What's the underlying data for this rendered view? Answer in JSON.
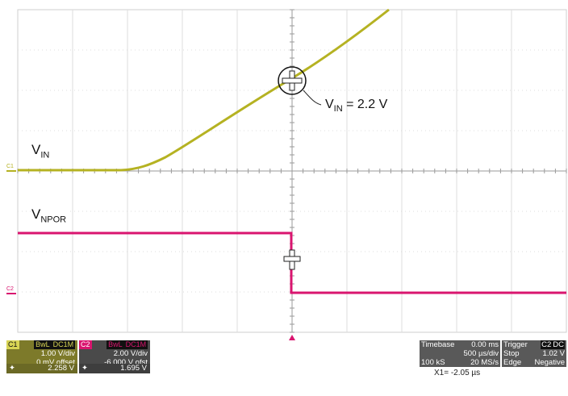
{
  "traces": {
    "vin_label": "V",
    "vin_sub": "IN",
    "vnpor_label": "V",
    "vnpor_sub": "NPOR",
    "annotation_v": "V",
    "annotation_sub": "IN",
    "annotation_val": " = 2.2 V",
    "c1_marker": "C1",
    "c2_marker": "C2"
  },
  "ch1_panel": {
    "name": "C1",
    "bwl": "BwL",
    "coupling": "DC1M",
    "scale": "1.00 V/div",
    "offset": "0 mV offset",
    "cursor_value": "2.258 V"
  },
  "ch2_panel": {
    "name": "C2",
    "bwl": "BwL",
    "coupling": "DC1M",
    "scale": "2.00 V/div",
    "offset": "-6.000 V ofst",
    "cursor_value": "1.695 V"
  },
  "timebase_panel": {
    "title": "Timebase",
    "delay": "0.00 ms",
    "scale": "500 µs/div",
    "samples": "100 kS",
    "rate": "20 MS/s",
    "cursor": "X1= -2.05 µs"
  },
  "trigger_panel": {
    "title": "Trigger",
    "source": "C2",
    "coupling": "DC",
    "mode": "Stop",
    "level": "1.02 V",
    "type": "Edge",
    "slope": "Negative"
  },
  "colors": {
    "ch1": "#b5b222",
    "ch2": "#d9156f",
    "grid": "#d9d9d9"
  }
}
